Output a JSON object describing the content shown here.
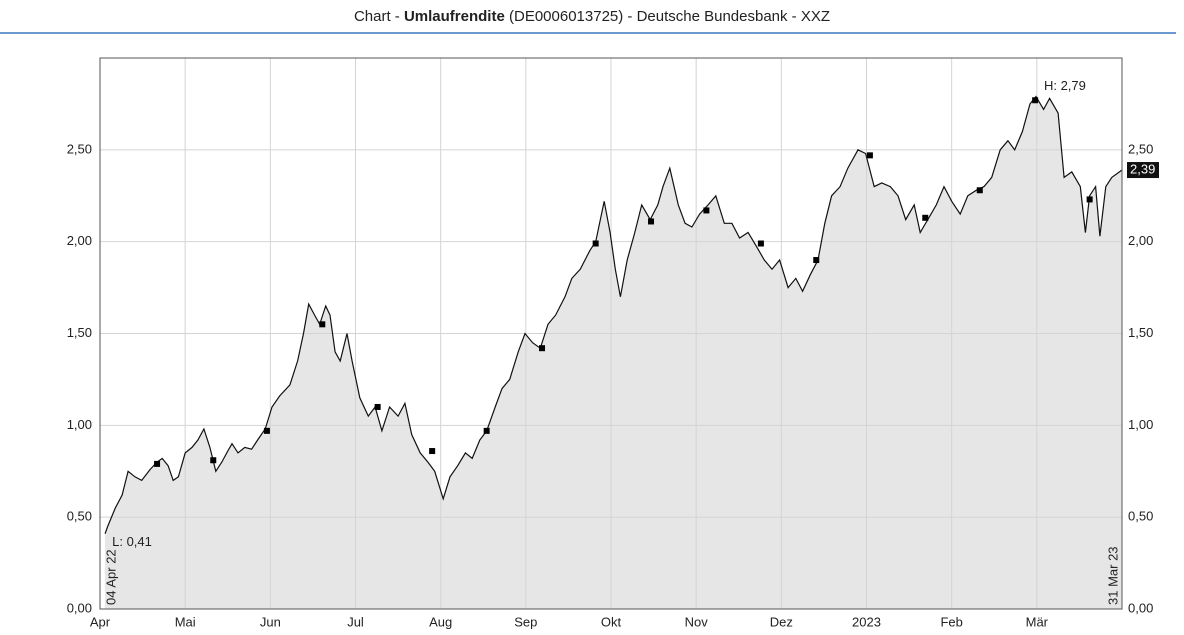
{
  "chart_data": {
    "type": "line",
    "title_prefix": "Chart - ",
    "title_bold": "Umlaufrendite",
    "title_suffix": " (DE0006013725) - Deutsche Bundesbank - XXZ",
    "annotations": {
      "high": "H: 2,79",
      "low": "L: 0,41",
      "start": "04 Apr 22",
      "end": "31 Mar 23",
      "last": "2,39"
    },
    "xlim": [
      0,
      12
    ],
    "xticks": [
      {
        "value": 0,
        "label": "Apr"
      },
      {
        "value": 1,
        "label": "Mai"
      },
      {
        "value": 2,
        "label": "Jun"
      },
      {
        "value": 3,
        "label": "Jul"
      },
      {
        "value": 4,
        "label": "Aug"
      },
      {
        "value": 5,
        "label": "Sep"
      },
      {
        "value": 6,
        "label": "Okt"
      },
      {
        "value": 7,
        "label": "Nov"
      },
      {
        "value": 8,
        "label": "Dez"
      },
      {
        "value": 9,
        "label": "2023"
      },
      {
        "value": 10,
        "label": "Feb"
      },
      {
        "value": 11,
        "label": "Mär"
      }
    ],
    "ylim": [
      0,
      3
    ],
    "yticks": [
      {
        "value": 0,
        "label": "0,00"
      },
      {
        "value": 0.5,
        "label": "0,50"
      },
      {
        "value": 1,
        "label": "1,00"
      },
      {
        "value": 1.5,
        "label": "1,50"
      },
      {
        "value": 2,
        "label": "2,00"
      },
      {
        "value": 2.5,
        "label": "2,50"
      }
    ],
    "grid": true,
    "fill": "#e6e6e6",
    "series": [
      {
        "color": "#111111",
        "x": [
          0.06,
          0.09,
          0.18,
          0.26,
          0.33,
          0.41,
          0.49,
          0.59,
          0.67,
          0.73,
          0.8,
          0.86,
          0.92,
          1.0,
          1.08,
          1.15,
          1.22,
          1.29,
          1.36,
          1.43,
          1.5,
          1.55,
          1.62,
          1.7,
          1.78,
          1.85,
          1.94,
          2.02,
          2.11,
          2.23,
          2.32,
          2.39,
          2.45,
          2.52,
          2.58,
          2.65,
          2.7,
          2.76,
          2.82,
          2.9,
          2.96,
          3.05,
          3.15,
          3.23,
          3.31,
          3.4,
          3.5,
          3.58,
          3.66,
          3.76,
          3.85,
          3.93,
          4.03,
          4.11,
          4.2,
          4.29,
          4.37,
          4.46,
          4.54,
          4.64,
          4.72,
          4.81,
          4.91,
          4.99,
          5.08,
          5.17,
          5.26,
          5.35,
          5.46,
          5.54,
          5.64,
          5.75,
          5.82,
          5.92,
          5.99,
          6.05,
          6.11,
          6.19,
          6.28,
          6.36,
          6.46,
          6.55,
          6.61,
          6.69,
          6.79,
          6.87,
          6.95,
          7.04,
          7.14,
          7.23,
          7.33,
          7.42,
          7.51,
          7.61,
          7.7,
          7.8,
          7.89,
          7.98,
          8.08,
          8.17,
          8.25,
          8.34,
          8.43,
          8.51,
          8.59,
          8.69,
          8.78,
          8.9,
          8.99,
          9.09,
          9.18,
          9.28,
          9.37,
          9.46,
          9.56,
          9.63,
          9.72,
          9.82,
          9.91,
          10.0,
          10.1,
          10.19,
          10.29,
          10.38,
          10.47,
          10.57,
          10.66,
          10.74,
          10.83,
          10.92,
          10.99,
          11.08,
          11.15,
          11.25,
          11.32,
          11.41,
          11.51,
          11.57,
          11.62,
          11.69,
          11.74,
          11.81,
          11.88,
          12.0
        ],
        "values": [
          0.41,
          0.45,
          0.55,
          0.62,
          0.75,
          0.72,
          0.7,
          0.76,
          0.8,
          0.82,
          0.78,
          0.7,
          0.72,
          0.85,
          0.88,
          0.92,
          0.98,
          0.88,
          0.75,
          0.8,
          0.86,
          0.9,
          0.85,
          0.88,
          0.87,
          0.92,
          0.98,
          1.1,
          1.16,
          1.22,
          1.35,
          1.5,
          1.66,
          1.6,
          1.55,
          1.65,
          1.6,
          1.4,
          1.35,
          1.5,
          1.35,
          1.15,
          1.05,
          1.1,
          0.97,
          1.1,
          1.05,
          1.12,
          0.95,
          0.85,
          0.8,
          0.75,
          0.6,
          0.72,
          0.78,
          0.85,
          0.82,
          0.92,
          0.97,
          1.1,
          1.2,
          1.25,
          1.4,
          1.5,
          1.45,
          1.42,
          1.55,
          1.6,
          1.7,
          1.8,
          1.85,
          1.95,
          2.0,
          2.22,
          2.05,
          1.85,
          1.7,
          1.9,
          2.05,
          2.2,
          2.12,
          2.2,
          2.3,
          2.4,
          2.2,
          2.1,
          2.08,
          2.15,
          2.2,
          2.25,
          2.1,
          2.1,
          2.02,
          2.05,
          1.98,
          1.9,
          1.85,
          1.9,
          1.75,
          1.8,
          1.73,
          1.82,
          1.9,
          2.1,
          2.25,
          2.3,
          2.4,
          2.5,
          2.48,
          2.3,
          2.32,
          2.3,
          2.25,
          2.12,
          2.2,
          2.05,
          2.12,
          2.2,
          2.3,
          2.22,
          2.15,
          2.25,
          2.28,
          2.3,
          2.35,
          2.5,
          2.55,
          2.5,
          2.6,
          2.75,
          2.79,
          2.72,
          2.78,
          2.7,
          2.35,
          2.38,
          2.3,
          2.05,
          2.25,
          2.3,
          2.03,
          2.3,
          2.35,
          2.39
        ]
      },
      {
        "color": "#000000",
        "marker": "square",
        "x": [
          0.67,
          1.33,
          1.96,
          2.61,
          3.26,
          3.9,
          4.54,
          5.19,
          5.82,
          6.47,
          7.12,
          7.76,
          8.41,
          9.04,
          9.69,
          10.33,
          10.98,
          11.62
        ],
        "values": [
          0.79,
          0.81,
          0.97,
          1.55,
          1.1,
          0.86,
          0.97,
          1.42,
          1.99,
          2.11,
          2.17,
          1.99,
          1.9,
          2.47,
          2.13,
          2.28,
          2.77,
          2.23
        ]
      }
    ]
  }
}
